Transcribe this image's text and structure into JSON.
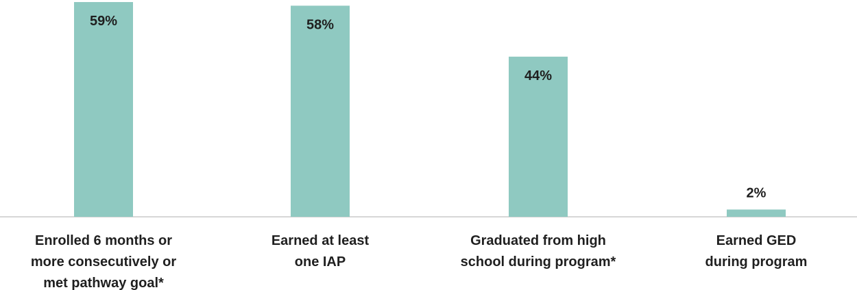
{
  "chart_data": {
    "type": "bar",
    "categories": [
      [
        "Enrolled 6 months or",
        "more consecutively or",
        "met pathway goal*"
      ],
      [
        "Earned at least",
        "one IAP"
      ],
      [
        "Graduated from high",
        "school during program*"
      ],
      [
        "Earned GED",
        "during program"
      ]
    ],
    "values": [
      59,
      58,
      44,
      2
    ],
    "value_labels": [
      "59%",
      "58%",
      "44%",
      "2%"
    ],
    "ylim": [
      0,
      59
    ],
    "grid": false,
    "colors": {
      "bar": "#8fc9c1",
      "axis": "#c8c8c8",
      "text": "#1f1f1f"
    }
  }
}
